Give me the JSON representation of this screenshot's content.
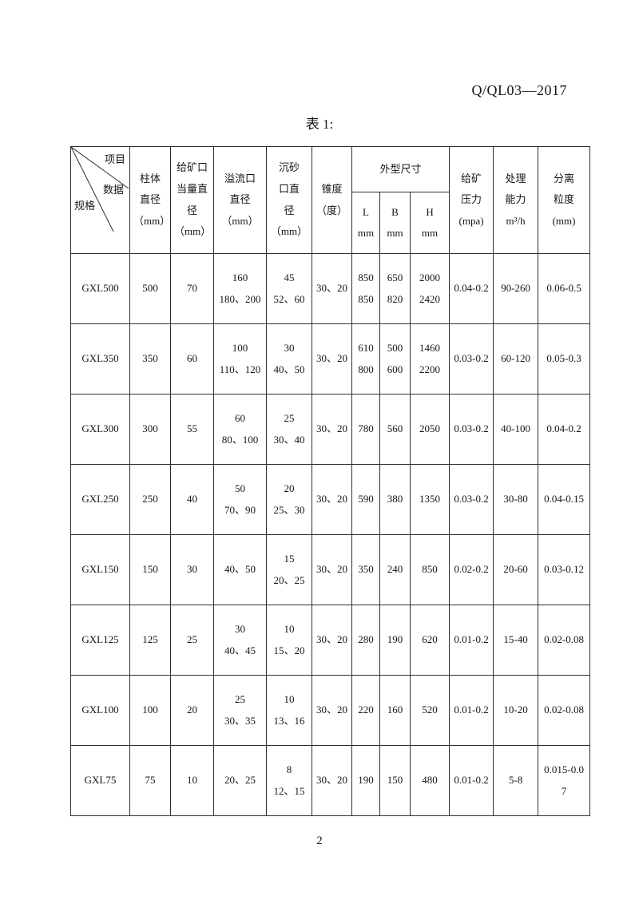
{
  "page": {
    "doc_number": "Q/QL03—2017",
    "table_title": "表 1:",
    "page_number": "2"
  },
  "table": {
    "corner": {
      "item": "项目",
      "data": "数据",
      "spec": "规格"
    },
    "col_headers": [
      "柱体\n直径\n（mm）",
      "给矿口\n当量直\n径\n（mm）",
      "溢流口\n直径\n（mm）",
      "沉砂\n口直\n径\n（mm）",
      "锥度\n（度）",
      "外型尺寸",
      "给矿\n压力\n(mpa)",
      "处理\n能力\nm³/h",
      "分离\n粒度\n(mm)"
    ],
    "sub_headers": [
      "L\nmm",
      "B\nmm",
      "H\nmm"
    ],
    "rows": [
      {
        "spec": "GXL500",
        "cells": [
          "500",
          "70",
          "160\n180、200",
          "45\n52、60",
          "30、20",
          "850\n850",
          "650\n820",
          "2000\n2420",
          "0.04-0.2",
          "90-260",
          "0.06-0.5"
        ]
      },
      {
        "spec": "GXL350",
        "cells": [
          "350",
          "60",
          "100\n110、120",
          "30\n40、50",
          "30、20",
          "610\n800",
          "500\n600",
          "1460\n2200",
          "0.03-0.2",
          "60-120",
          "0.05-0.3"
        ]
      },
      {
        "spec": "GXL300",
        "cells": [
          "300",
          "55",
          "60\n80、100",
          "25\n30、40",
          "30、20",
          "780",
          "560",
          "2050",
          "0.03-0.2",
          "40-100",
          "0.04-0.2"
        ]
      },
      {
        "spec": "GXL250",
        "cells": [
          "250",
          "40",
          "50\n70、90",
          "20\n25、30",
          "30、20",
          "590",
          "380",
          "1350",
          "0.03-0.2",
          "30-80",
          "0.04-0.15"
        ]
      },
      {
        "spec": "GXL150",
        "cells": [
          "150",
          "30",
          "40、50",
          "15\n20、25",
          "30、20",
          "350",
          "240",
          "850",
          "0.02-0.2",
          "20-60",
          "0.03-0.12"
        ]
      },
      {
        "spec": "GXL125",
        "cells": [
          "125",
          "25",
          "30\n40、45",
          "10\n15、20",
          "30、20",
          "280",
          "190",
          "620",
          "0.01-0.2",
          "15-40",
          "0.02-0.08"
        ]
      },
      {
        "spec": "GXL100",
        "cells": [
          "100",
          "20",
          "25\n30、35",
          "10\n13、16",
          "30、20",
          "220",
          "160",
          "520",
          "0.01-0.2",
          "10-20",
          "0.02-0.08"
        ]
      },
      {
        "spec": "GXL75",
        "cells": [
          "75",
          "10",
          "20、25",
          "8\n12、15",
          "30、20",
          "190",
          "150",
          "480",
          "0.01-0.2",
          "5-8",
          "0.015-0.07"
        ]
      }
    ]
  }
}
